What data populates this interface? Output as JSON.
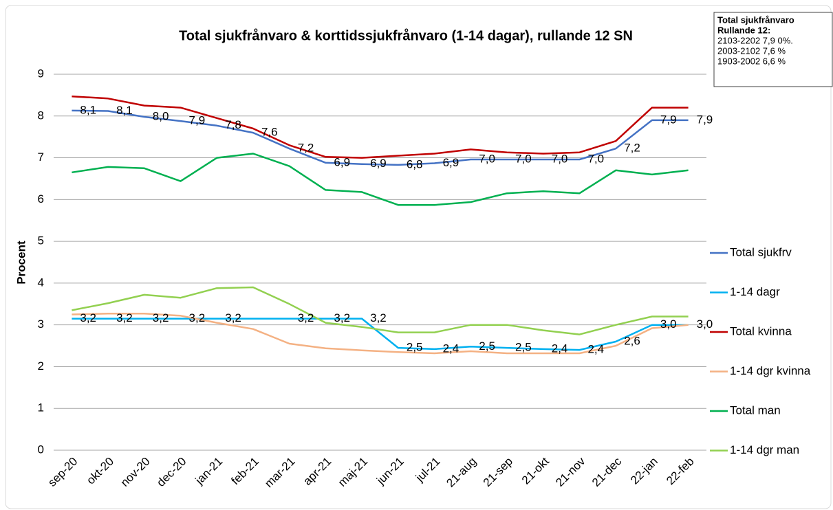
{
  "chart_data": {
    "type": "line",
    "title": "Total sjukfrånvaro & korttidssjukfrånvaro (1-14 dagar), rullande 12 SN",
    "y_label": "Procent",
    "categories": [
      "sep-20",
      "okt-20",
      "nov-20",
      "dec-20",
      "jan-21",
      "feb-21",
      "mar-21",
      "apr-21",
      "maj-21",
      "jun-21",
      "jul-21",
      "21-aug",
      "21-sep",
      "21-okt",
      "21-nov",
      "21-dec",
      "22-jan",
      "22-feb"
    ],
    "ylim": [
      0,
      9
    ],
    "yticks": [
      0,
      1,
      2,
      3,
      4,
      5,
      6,
      7,
      8,
      9
    ],
    "grid": true,
    "legend": "right",
    "annotation": {
      "heading": [
        "Total sjukfrånvaro",
        "Rullande 12:"
      ],
      "lines": [
        "2103-2202  7,9 0%.",
        "2003-2102  7,6 %",
        "1903-2002  6,6 %"
      ]
    },
    "series": [
      {
        "name": "Total sjukfrv",
        "color": "#4472c4",
        "values": [
          8.13,
          8.12,
          7.98,
          7.88,
          7.77,
          7.6,
          7.22,
          6.88,
          6.85,
          6.83,
          6.87,
          6.96,
          6.96,
          6.96,
          6.96,
          7.22,
          7.9,
          7.9
        ],
        "value_labels": [
          "8,1",
          "8,1",
          "8,0",
          "7,9",
          "7,8",
          "7,6",
          "7,2",
          "6,9",
          "6,9",
          "6,8",
          "6,9",
          "7,0",
          "7,0",
          "7,0",
          "7,0",
          "7,2",
          "7,9",
          "7,9"
        ]
      },
      {
        "name": "1-14 dagr",
        "color": "#00b0f0",
        "values": [
          3.15,
          3.15,
          3.15,
          3.15,
          3.15,
          3.15,
          3.15,
          3.15,
          3.15,
          2.45,
          2.42,
          2.48,
          2.45,
          2.42,
          2.4,
          2.6,
          3.0,
          3.0
        ],
        "value_labels": [
          "3,2",
          "3,2",
          "3,2",
          "3,2",
          "3,2",
          null,
          "3,2",
          "3,2",
          "3,2",
          "2,5",
          "2,4",
          "2,5",
          "2,5",
          "2,4",
          "2,4",
          "2,6",
          "3,0",
          "3,0"
        ]
      },
      {
        "name": "Total kvinna",
        "color": "#c00000",
        "values": [
          8.47,
          8.42,
          8.25,
          8.2,
          7.95,
          7.7,
          7.3,
          7.02,
          7.0,
          7.05,
          7.1,
          7.2,
          7.13,
          7.1,
          7.13,
          7.4,
          8.2,
          8.2
        ]
      },
      {
        "name": "1-14 dgr kvinna",
        "color": "#f4b183",
        "values": [
          3.25,
          3.27,
          3.27,
          3.22,
          3.05,
          2.9,
          2.55,
          2.44,
          2.39,
          2.35,
          2.32,
          2.37,
          2.32,
          2.32,
          2.32,
          2.5,
          2.92,
          3.0
        ]
      },
      {
        "name": "Total man",
        "color": "#00b050",
        "values": [
          6.65,
          6.78,
          6.75,
          6.44,
          7.0,
          7.1,
          6.8,
          6.23,
          6.18,
          5.87,
          5.87,
          5.94,
          6.15,
          6.2,
          6.15,
          6.7,
          6.6,
          6.7
        ]
      },
      {
        "name": "1-14 dgr man",
        "color": "#92d050",
        "values": [
          3.35,
          3.52,
          3.72,
          3.65,
          3.88,
          3.9,
          3.5,
          3.05,
          2.95,
          2.82,
          2.82,
          3.0,
          3.0,
          2.87,
          2.77,
          3.0,
          3.2,
          3.2
        ]
      }
    ]
  }
}
